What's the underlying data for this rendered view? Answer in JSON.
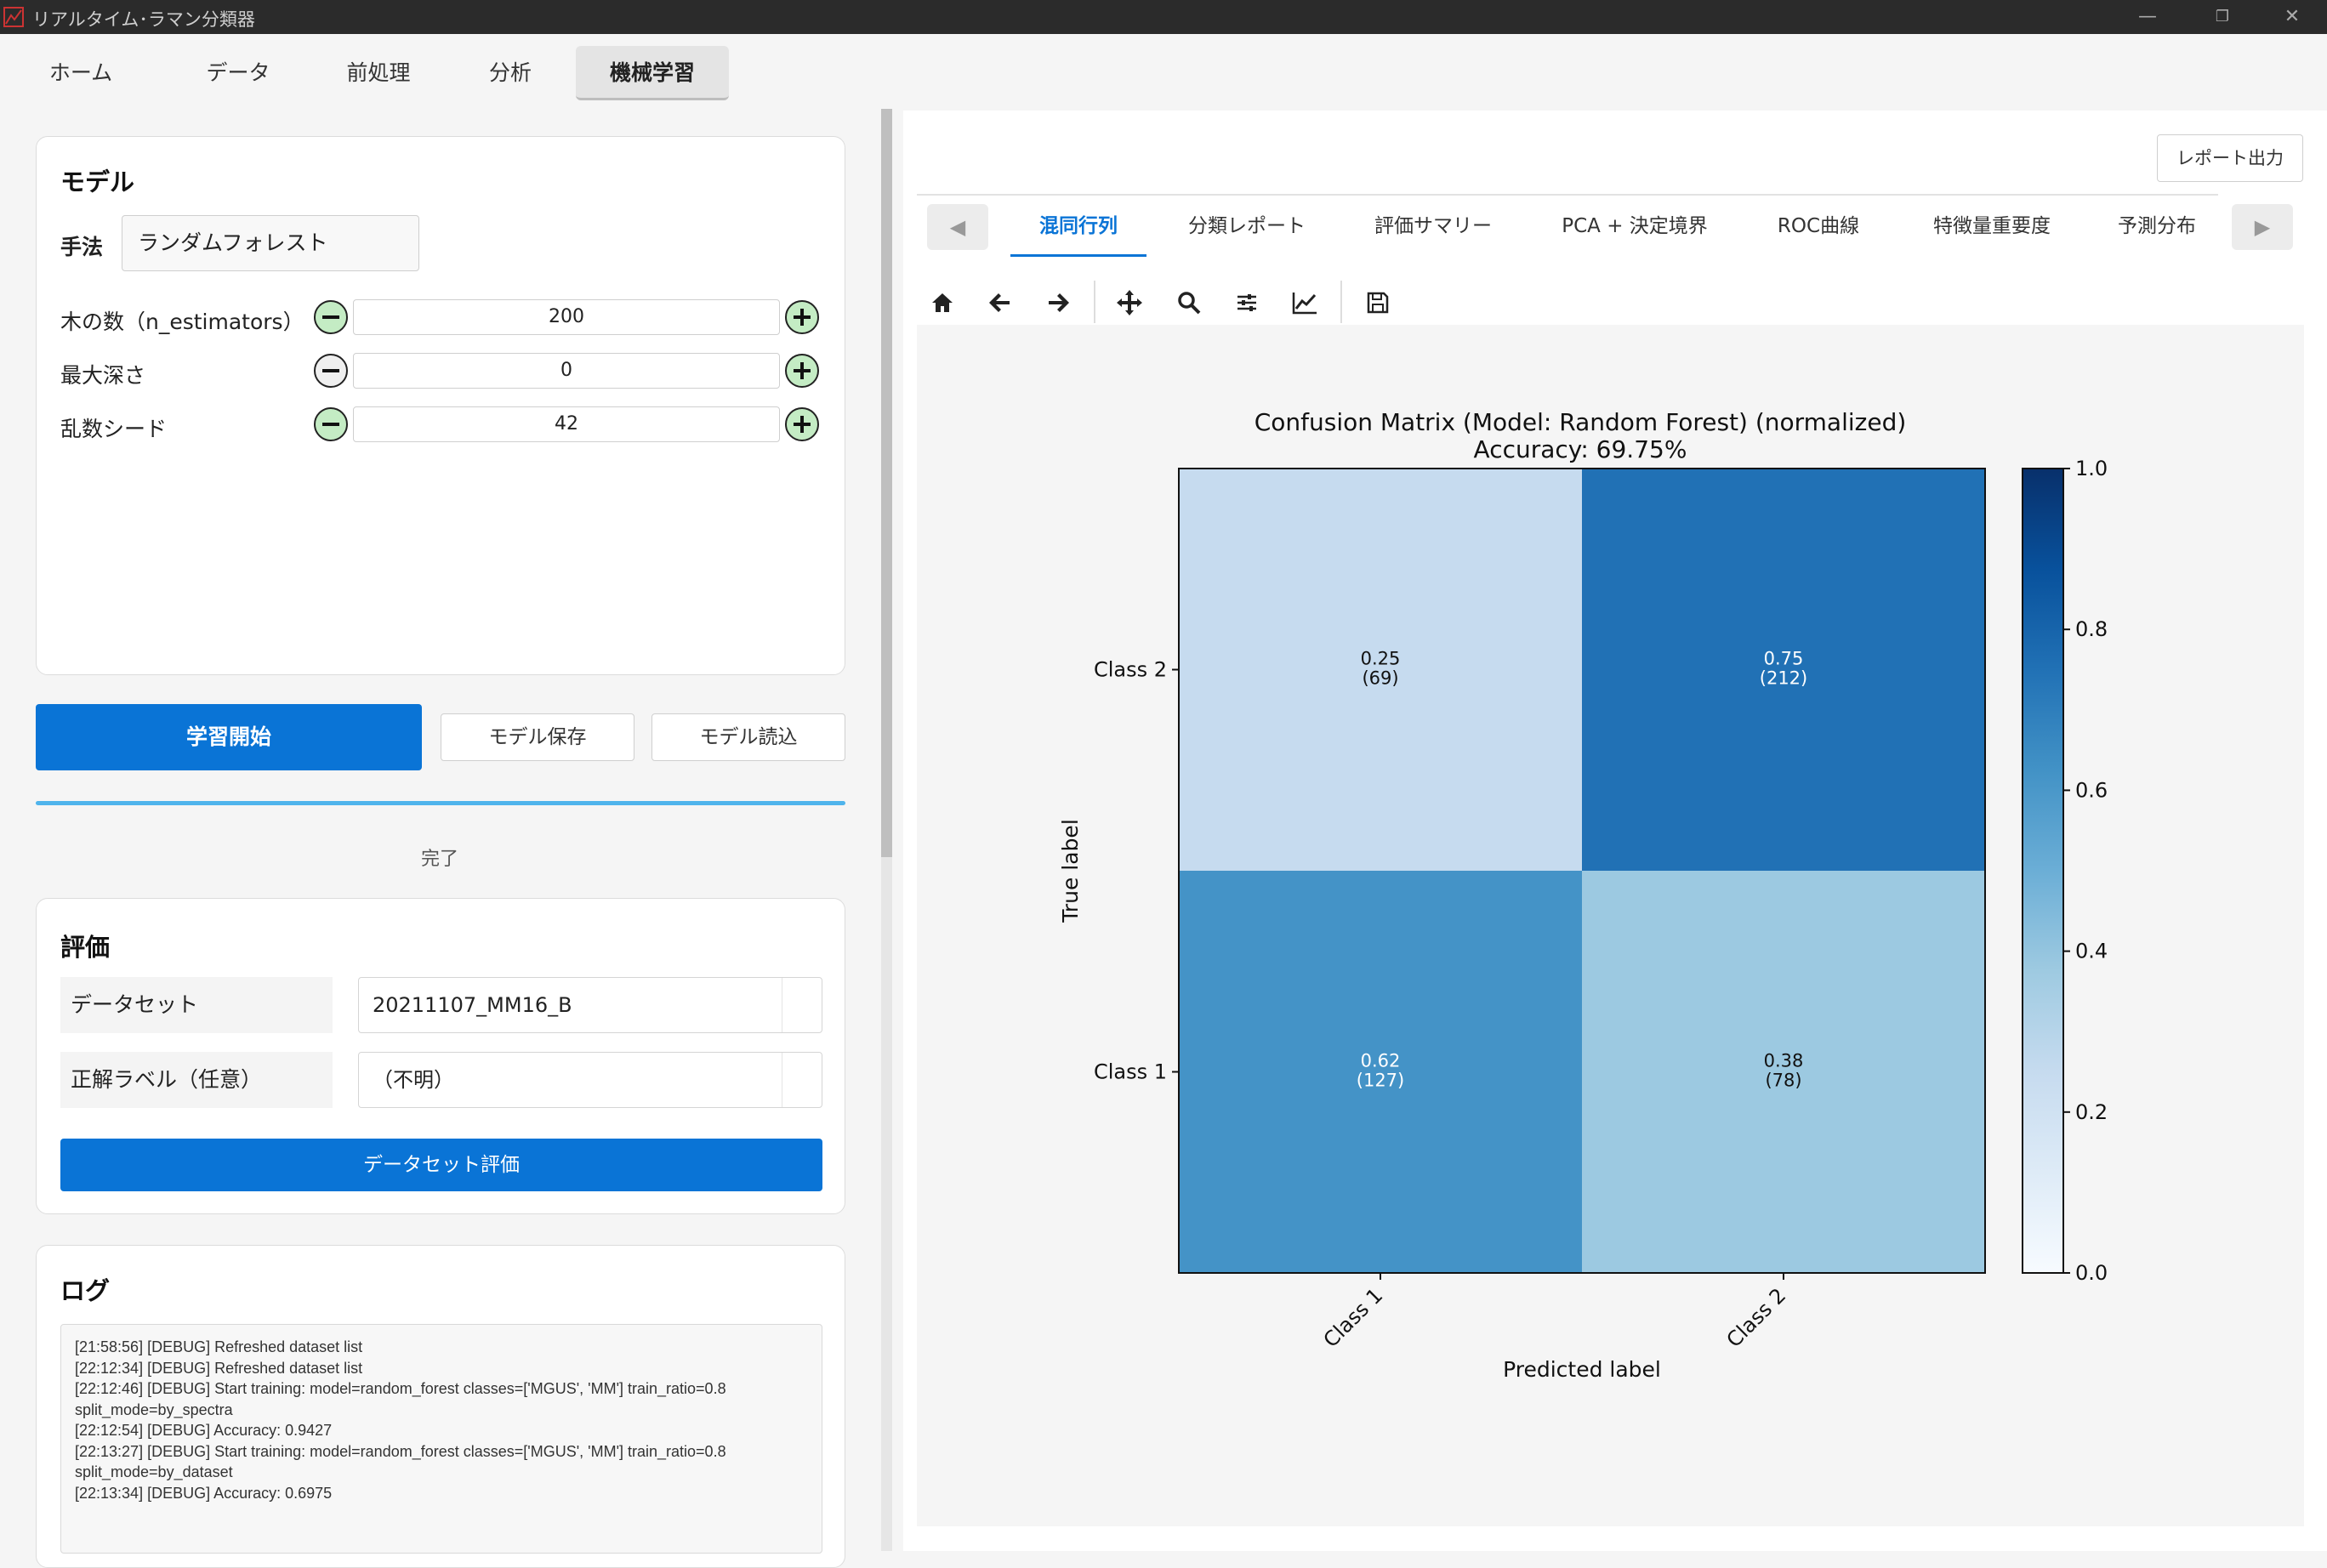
{
  "window": {
    "title": "リアルタイム･ラマン分類器",
    "minimize": "—",
    "maximize": "❐",
    "close": "✕"
  },
  "nav": {
    "tabs": [
      "ホーム",
      "データ",
      "前処理",
      "分析",
      "機械学習"
    ],
    "active": 4
  },
  "model": {
    "title": "モデル",
    "method_label": "手法",
    "method_value": "ランダムフォレスト",
    "params": [
      {
        "label": "木の数（n_estimators）",
        "value": "200"
      },
      {
        "label": "最大深さ",
        "value": "0"
      },
      {
        "label": "乱数シード",
        "value": "42"
      }
    ]
  },
  "actions": {
    "train": "学習開始",
    "save": "モデル保存",
    "load": "モデル読込",
    "status": "完了"
  },
  "evaluation": {
    "title": "評価",
    "dataset_label": "データセット",
    "dataset_value": "20211107_MM16_B",
    "truth_label": "正解ラベル（任意）",
    "truth_value": "（不明）",
    "evaluate_button": "データセット評価"
  },
  "log": {
    "title": "ログ",
    "text": "[21:58:56] [DEBUG] Refreshed dataset list\n[22:12:34] [DEBUG] Refreshed dataset list\n[22:12:46] [DEBUG] Start training: model=random_forest classes=['MGUS', 'MM'] train_ratio=0.8\nsplit_mode=by_spectra\n[22:12:54] [DEBUG] Accuracy: 0.9427\n[22:13:27] [DEBUG] Start training: model=random_forest classes=['MGUS', 'MM'] train_ratio=0.8\nsplit_mode=by_dataset\n[22:13:34] [DEBUG] Accuracy: 0.6975"
  },
  "report_button": "レポート出力",
  "result_tabs": {
    "items": [
      "混同行列",
      "分類レポート",
      "評価サマリー",
      "PCA + 決定境界",
      "ROC曲線",
      "特徴量重要度",
      "予測分布"
    ],
    "active": 0
  },
  "toolbar_icons": [
    "home-icon",
    "back-arrow-icon",
    "forward-arrow-icon",
    "pan-icon",
    "zoom-icon",
    "configure-subplots-icon",
    "edit-axis-icon",
    "save-icon"
  ],
  "chart_data": {
    "type": "heatmap",
    "title": "Confusion Matrix (Model: Random Forest) (normalized)",
    "subtitle": "Accuracy: 69.75%",
    "xlabel": "Predicted label",
    "ylabel": "True label",
    "x_categories": [
      "Class 1",
      "Class 2"
    ],
    "y_categories": [
      "Class 2",
      "Class 1"
    ],
    "cells": [
      {
        "row": "Class 2",
        "col": "Class 1",
        "value": 0.25,
        "count": "(69)"
      },
      {
        "row": "Class 2",
        "col": "Class 2",
        "value": 0.75,
        "count": "(212)"
      },
      {
        "row": "Class 1",
        "col": "Class 1",
        "value": 0.62,
        "count": "(127)"
      },
      {
        "row": "Class 1",
        "col": "Class 2",
        "value": 0.38,
        "count": "(78)"
      }
    ],
    "colorbar": {
      "range": [
        0.0,
        1.0
      ],
      "ticks": [
        "0.0",
        "0.2",
        "0.4",
        "0.6",
        "0.8",
        "1.0"
      ],
      "colormap": "Blues"
    }
  }
}
